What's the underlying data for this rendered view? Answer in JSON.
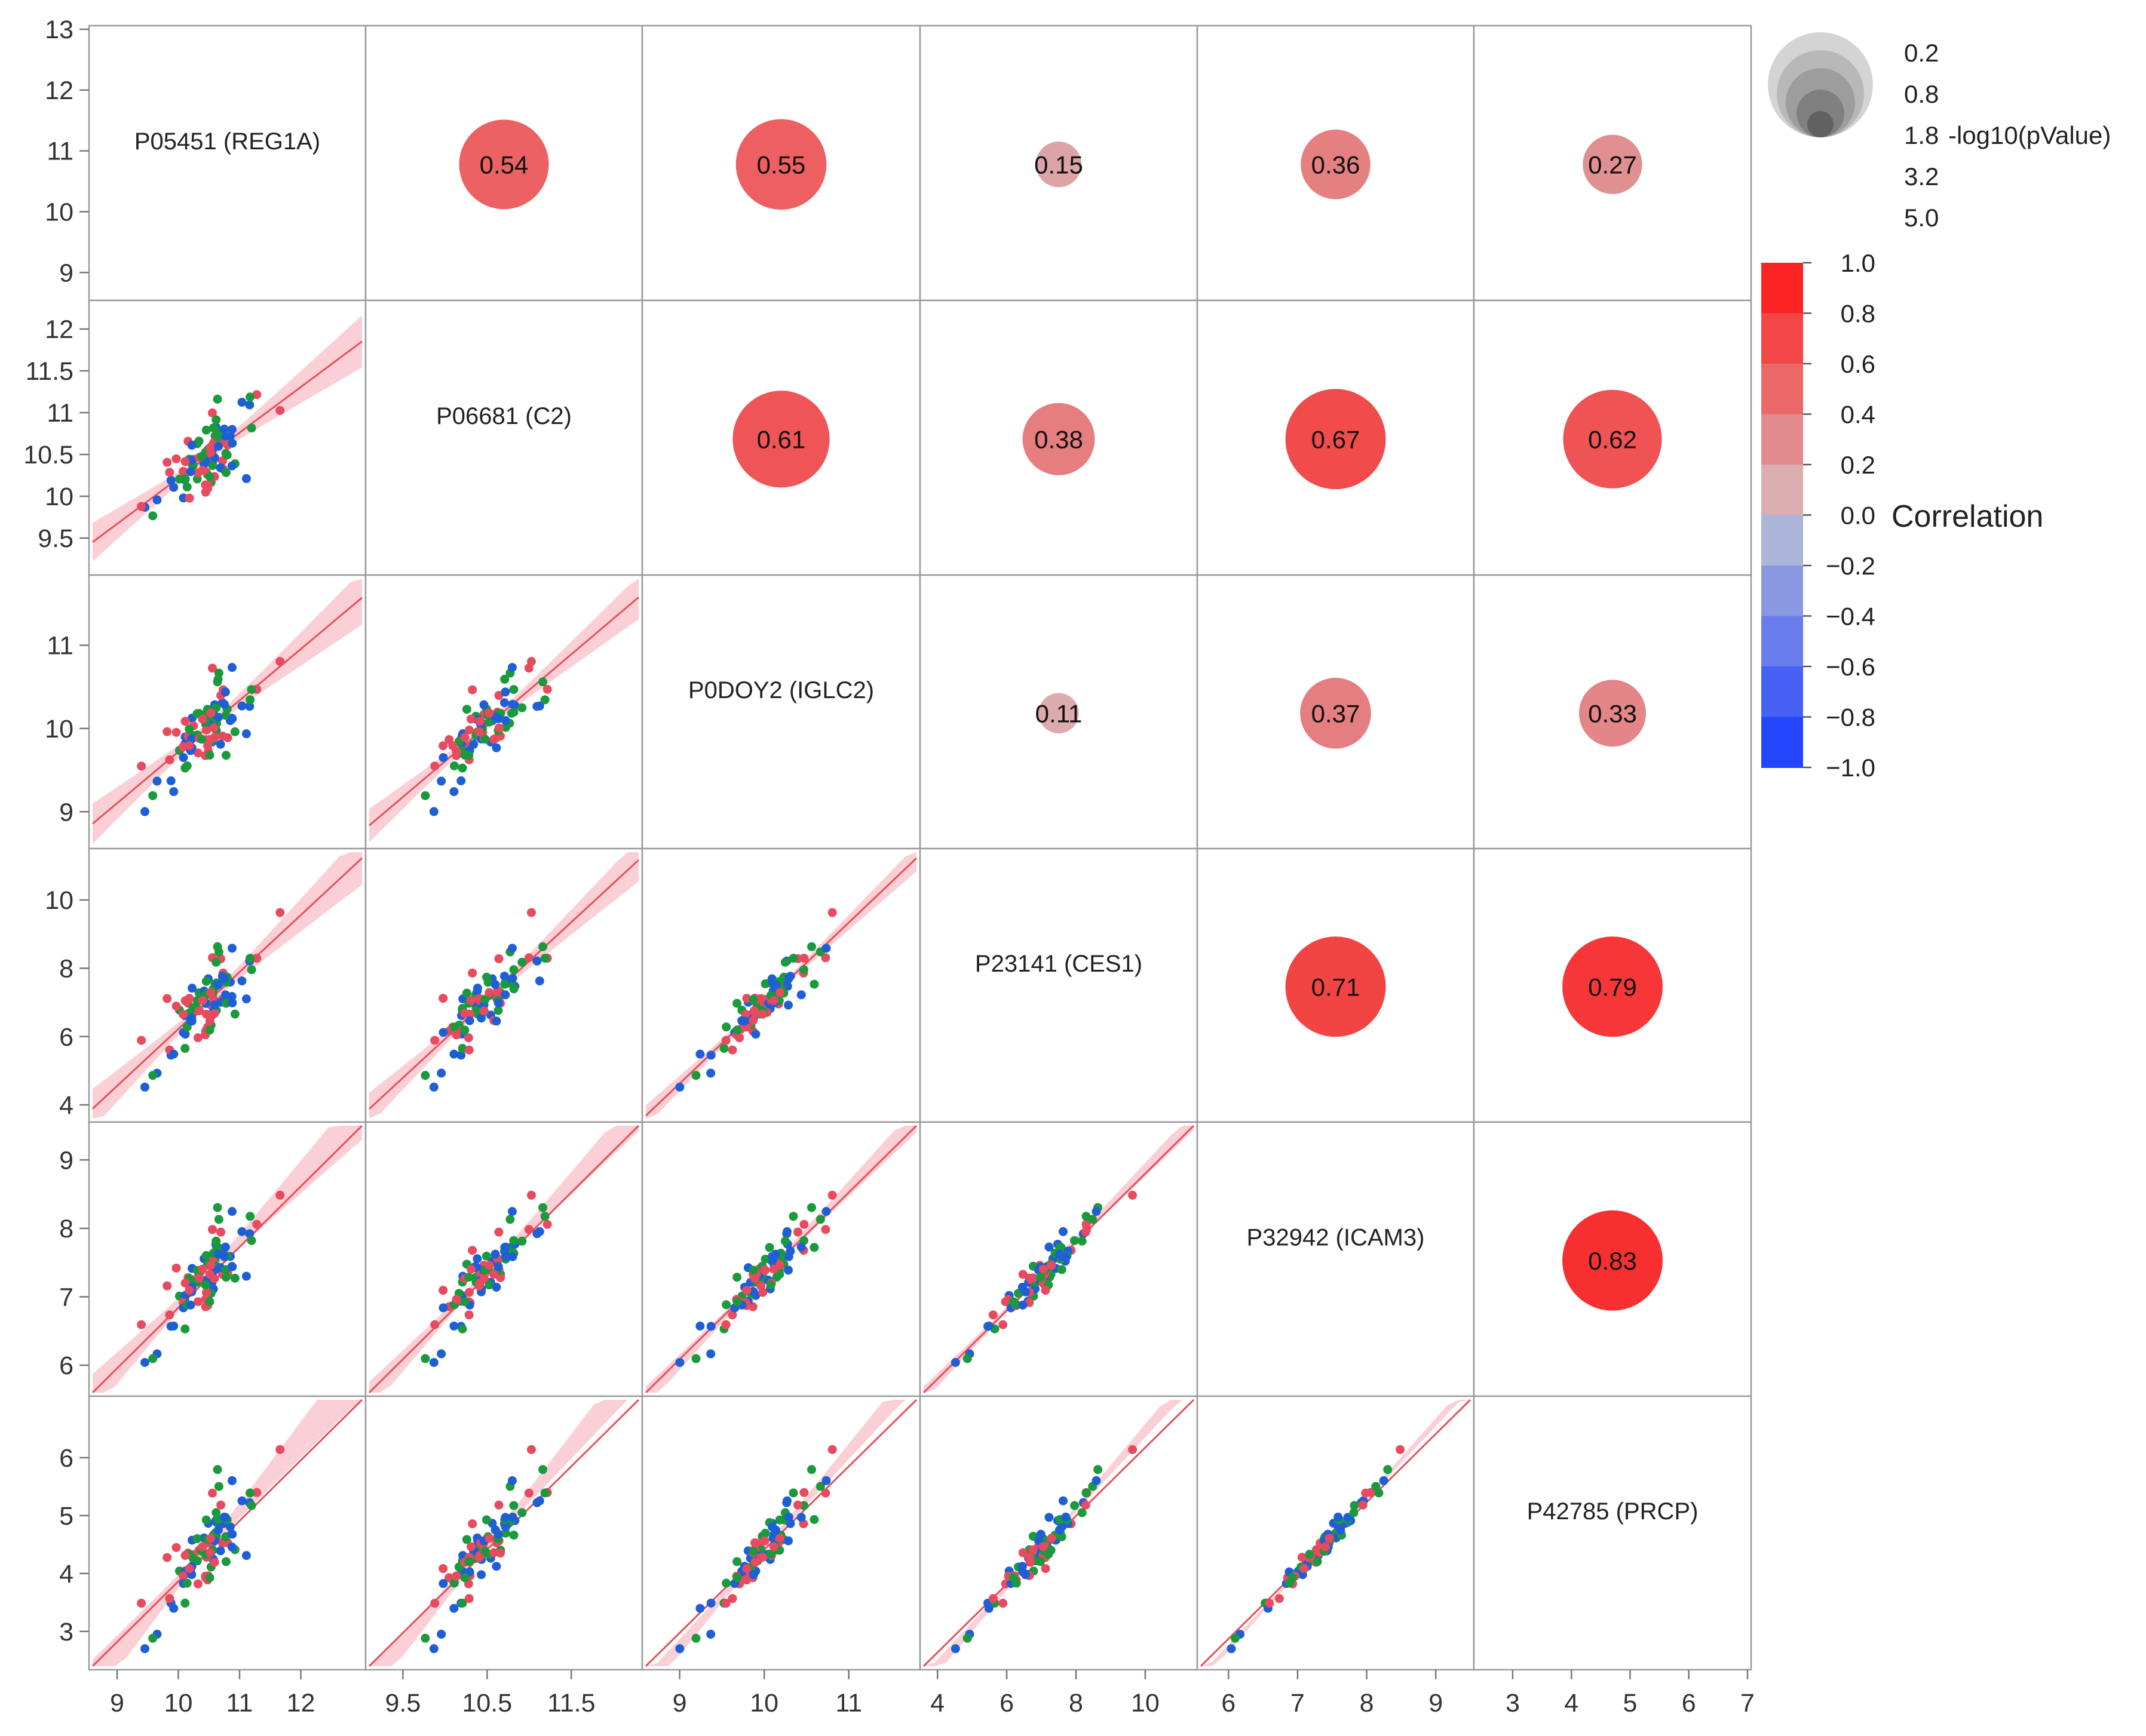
{
  "chart_data": {
    "type": "scatter-matrix",
    "variables": [
      "P05451 (REG1A)",
      "P06681 (C2)",
      "P0DOY2 (IGLC2)",
      "P23141 (CES1)",
      "P32942 (ICAM3)",
      "P42785 (PRCP)"
    ],
    "axis_ranges": [
      [
        8.6,
        13.0
      ],
      [
        9.1,
        12.3
      ],
      [
        8.6,
        11.8
      ],
      [
        3.6,
        11.4
      ],
      [
        5.6,
        9.5
      ],
      [
        2.4,
        7.0
      ]
    ],
    "x_axis_ticks": [
      [
        "9",
        "10",
        "11",
        "12"
      ],
      [
        "9.5",
        "10.5",
        "11.5"
      ],
      [
        "9",
        "10",
        "11"
      ],
      [
        "4",
        "6",
        "8",
        "10"
      ],
      [
        "6",
        "7",
        "8",
        "9"
      ],
      [
        "3",
        "4",
        "5",
        "6",
        "7"
      ]
    ],
    "y_axis_ticks": [
      [
        "13",
        "12",
        "11",
        "10",
        "9"
      ],
      [
        "12",
        "11.5",
        "11",
        "10.5",
        "10",
        "9.5"
      ],
      [
        "11",
        "10",
        "9"
      ],
      [
        "10",
        "8",
        "6",
        "4"
      ],
      [
        "9",
        "8",
        "7",
        "6"
      ],
      [
        "6",
        "5",
        "4",
        "3"
      ]
    ],
    "correlations": [
      {
        "row": 0,
        "col": 1,
        "r": 0.54,
        "label": "0.54",
        "neg_log10_p": 3.8
      },
      {
        "row": 0,
        "col": 2,
        "r": 0.55,
        "label": "0.55",
        "neg_log10_p": 3.9
      },
      {
        "row": 0,
        "col": 3,
        "r": 0.15,
        "label": "0.15",
        "neg_log10_p": 0.6
      },
      {
        "row": 0,
        "col": 4,
        "r": 0.36,
        "label": "0.36",
        "neg_log10_p": 2.0
      },
      {
        "row": 0,
        "col": 5,
        "r": 0.27,
        "label": "0.27",
        "neg_log10_p": 1.3
      },
      {
        "row": 1,
        "col": 2,
        "r": 0.61,
        "label": "0.61",
        "neg_log10_p": 4.6
      },
      {
        "row": 1,
        "col": 3,
        "r": 0.38,
        "label": "0.38",
        "neg_log10_p": 2.2
      },
      {
        "row": 1,
        "col": 4,
        "r": 0.67,
        "label": "0.67",
        "neg_log10_p": 5.0
      },
      {
        "row": 1,
        "col": 5,
        "r": 0.62,
        "label": "0.62",
        "neg_log10_p": 4.8
      },
      {
        "row": 2,
        "col": 3,
        "r": 0.11,
        "label": "0.11",
        "neg_log10_p": 0.4
      },
      {
        "row": 2,
        "col": 4,
        "r": 0.37,
        "label": "0.37",
        "neg_log10_p": 2.1
      },
      {
        "row": 2,
        "col": 5,
        "r": 0.33,
        "label": "0.33",
        "neg_log10_p": 1.8
      },
      {
        "row": 3,
        "col": 4,
        "r": 0.71,
        "label": "0.71",
        "neg_log10_p": 5.0
      },
      {
        "row": 3,
        "col": 5,
        "r": 0.79,
        "label": "0.79",
        "neg_log10_p": 5.0
      },
      {
        "row": 4,
        "col": 5,
        "r": 0.83,
        "label": "0.83",
        "neg_log10_p": 5.0
      }
    ],
    "size_legend": {
      "title": "-log10(pValue)",
      "levels": [
        "0.2",
        "0.8",
        "1.8",
        "3.2",
        "5.0"
      ]
    },
    "color_legend": {
      "title": "Correlation",
      "ticks": [
        "1.0",
        "0.8",
        "0.6",
        "0.4",
        "0.2",
        "0.0",
        "−0.2",
        "−0.4",
        "−0.6",
        "−0.8",
        "−1.0"
      ]
    },
    "group_colors": {
      "group_a": "#1f5fd6",
      "group_b": "#e84a5f",
      "group_c": "#1a9a3c"
    },
    "fit_line_color": "#e8505b",
    "fit_band_color": "#f9c8cf",
    "grid": false,
    "legend_position": "right"
  }
}
